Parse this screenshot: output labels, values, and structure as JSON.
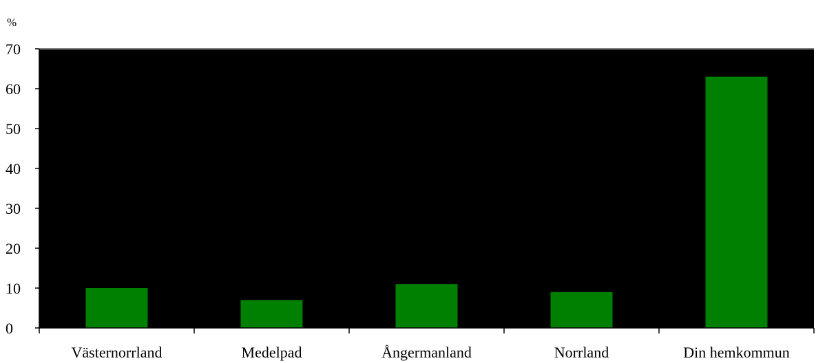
{
  "chart_data": {
    "type": "bar",
    "title": "",
    "unit_label": "%",
    "categories": [
      "Västernorrland",
      "Medelpad",
      "Ångermanland",
      "Norrland",
      "Din hemkommun"
    ],
    "values": [
      10,
      7,
      11,
      9,
      63
    ],
    "ylim": [
      0,
      70
    ],
    "yticks": [
      0,
      10,
      20,
      30,
      40,
      50,
      60,
      70
    ],
    "grid": false,
    "legend": "none",
    "colors": {
      "bar": "#008000",
      "plot_background": "#000000",
      "page_background": "#ffffff",
      "axis": "#000000",
      "top_border": "#808080"
    }
  }
}
